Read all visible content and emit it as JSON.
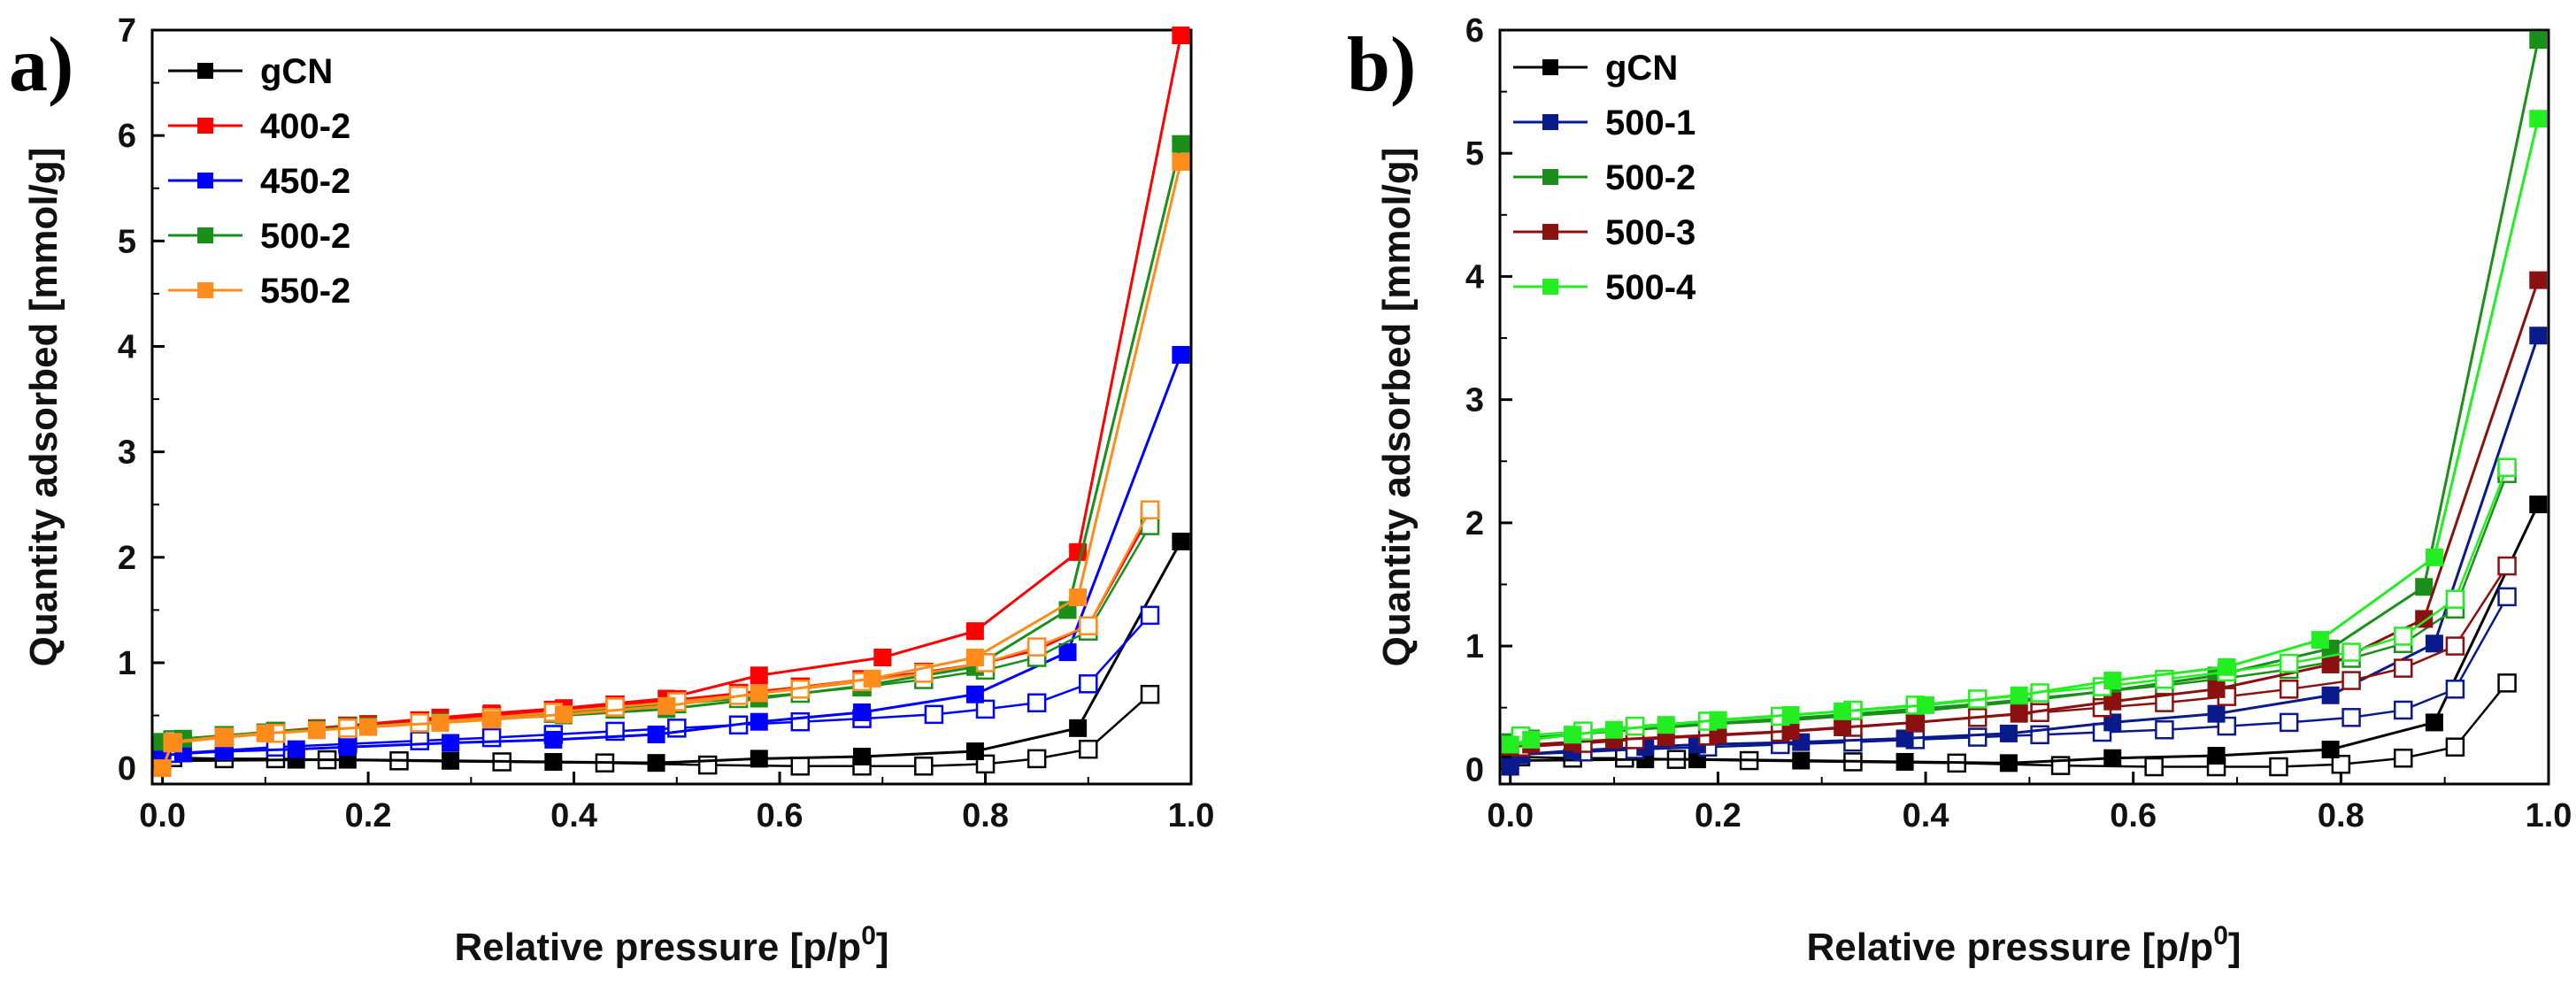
{
  "chart_data": [
    {
      "panel": "a)",
      "type": "line",
      "xlabel": "Relative pressure [p/p",
      "xlabel_sup": "0",
      "xlabel_end": "]",
      "ylabel": "Quantity adsorbed [mmol/g]",
      "xlim": [
        -0.01,
        1.0
      ],
      "ylim": [
        -0.15,
        7.0
      ],
      "xticks": [
        "0.0",
        "0.2",
        "0.4",
        "0.6",
        "0.8",
        "1.0"
      ],
      "yticks": [
        "0",
        "1",
        "2",
        "3",
        "4",
        "5",
        "6",
        "7"
      ],
      "legend_position": "top-left",
      "series": [
        {
          "name": "gCN",
          "color": "#000000",
          "adsorption": {
            "x": [
              0.0,
              0.13,
              0.18,
              0.28,
              0.38,
              0.48,
              0.58,
              0.68,
              0.79,
              0.89,
              0.99
            ],
            "y": [
              0.07,
              0.08,
              0.08,
              0.07,
              0.06,
              0.05,
              0.09,
              0.11,
              0.16,
              0.38,
              2.15
            ]
          },
          "desorption": {
            "x": [
              0.96,
              0.9,
              0.85,
              0.8,
              0.74,
              0.68,
              0.62,
              0.53,
              0.43,
              0.33,
              0.23,
              0.16,
              0.11,
              0.06,
              0.01
            ],
            "y": [
              0.7,
              0.18,
              0.09,
              0.04,
              0.02,
              0.02,
              0.02,
              0.03,
              0.05,
              0.06,
              0.07,
              0.08,
              0.09,
              0.09,
              0.1
            ]
          }
        },
        {
          "name": "400-2",
          "color": "#ff0000",
          "adsorption": {
            "x": [
              0.0,
              0.02,
              0.06,
              0.1,
              0.15,
              0.2,
              0.27,
              0.32,
              0.39,
              0.49,
              0.58,
              0.7,
              0.79,
              0.89,
              0.99
            ],
            "y": [
              0.22,
              0.26,
              0.3,
              0.34,
              0.38,
              0.42,
              0.48,
              0.52,
              0.57,
              0.66,
              0.88,
              1.05,
              1.3,
              2.05,
              6.95
            ]
          },
          "desorption": {
            "x": [
              0.96,
              0.9,
              0.85,
              0.8,
              0.74,
              0.68,
              0.62,
              0.56,
              0.5,
              0.44,
              0.38,
              0.32,
              0.25,
              0.18,
              0.11,
              0.06,
              0.01
            ],
            "y": [
              2.4,
              1.35,
              1.12,
              1.0,
              0.91,
              0.84,
              0.77,
              0.71,
              0.65,
              0.6,
              0.55,
              0.5,
              0.45,
              0.4,
              0.35,
              0.3,
              0.25
            ]
          }
        },
        {
          "name": "450-2",
          "color": "#0000ff",
          "adsorption": {
            "x": [
              0.0,
              0.02,
              0.06,
              0.13,
              0.18,
              0.28,
              0.38,
              0.48,
              0.58,
              0.68,
              0.79,
              0.88,
              0.99
            ],
            "y": [
              0.12,
              0.14,
              0.16,
              0.18,
              0.2,
              0.24,
              0.27,
              0.32,
              0.44,
              0.53,
              0.7,
              1.1,
              3.92
            ]
          },
          "desorption": {
            "x": [
              0.96,
              0.9,
              0.85,
              0.8,
              0.75,
              0.68,
              0.62,
              0.56,
              0.5,
              0.44,
              0.38,
              0.32,
              0.25,
              0.18,
              0.11,
              0.06,
              0.01
            ],
            "y": [
              1.45,
              0.8,
              0.62,
              0.56,
              0.51,
              0.47,
              0.44,
              0.41,
              0.38,
              0.35,
              0.32,
              0.29,
              0.26,
              0.23,
              0.2,
              0.17,
              0.14
            ]
          }
        },
        {
          "name": "500-2",
          "color": "#1a8f1a",
          "adsorption": {
            "x": [
              0.0,
              0.02,
              0.06,
              0.1,
              0.15,
              0.2,
              0.27,
              0.32,
              0.39,
              0.49,
              0.58,
              0.68,
              0.79,
              0.88,
              0.99
            ],
            "y": [
              0.25,
              0.28,
              0.31,
              0.34,
              0.37,
              0.4,
              0.44,
              0.47,
              0.5,
              0.56,
              0.66,
              0.78,
              0.96,
              1.5,
              5.92
            ]
          },
          "desorption": {
            "x": [
              0.96,
              0.9,
              0.85,
              0.8,
              0.74,
              0.68,
              0.62,
              0.56,
              0.5,
              0.44,
              0.38,
              0.32,
              0.25,
              0.18,
              0.11,
              0.06,
              0.01
            ],
            "y": [
              2.3,
              1.3,
              1.05,
              0.93,
              0.84,
              0.77,
              0.71,
              0.66,
              0.61,
              0.56,
              0.52,
              0.48,
              0.43,
              0.39,
              0.35,
              0.31,
              0.27
            ]
          }
        },
        {
          "name": "550-2",
          "color": "#ff8c1a",
          "adsorption": {
            "x": [
              0.0,
              0.01,
              0.06,
              0.1,
              0.15,
              0.2,
              0.27,
              0.32,
              0.39,
              0.49,
              0.58,
              0.69,
              0.79,
              0.89,
              0.99
            ],
            "y": [
              0.0,
              0.25,
              0.3,
              0.33,
              0.36,
              0.39,
              0.43,
              0.46,
              0.51,
              0.59,
              0.71,
              0.85,
              1.05,
              1.62,
              5.75
            ]
          },
          "desorption": {
            "x": [
              0.96,
              0.9,
              0.85,
              0.8,
              0.74,
              0.68,
              0.62,
              0.56,
              0.5,
              0.44,
              0.38,
              0.32,
              0.25,
              0.18,
              0.11,
              0.06,
              0.01
            ],
            "y": [
              2.45,
              1.35,
              1.15,
              1.0,
              0.9,
              0.82,
              0.75,
              0.69,
              0.63,
              0.58,
              0.53,
              0.48,
              0.43,
              0.38,
              0.33,
              0.29,
              0.24
            ]
          }
        }
      ]
    },
    {
      "panel": "b)",
      "type": "line",
      "xlabel": "Relative pressure [p/p",
      "xlabel_sup": "0",
      "xlabel_end": "]",
      "ylabel": "Quantity adsorbed [mmol/g]",
      "xlim": [
        -0.01,
        1.0
      ],
      "ylim": [
        -0.12,
        6.0
      ],
      "xticks": [
        "0.0",
        "0.2",
        "0.4",
        "0.6",
        "0.8",
        "1.0"
      ],
      "yticks": [
        "0",
        "1",
        "2",
        "3",
        "4",
        "5",
        "6"
      ],
      "legend_position": "top-left",
      "series": [
        {
          "name": "gCN",
          "color": "#000000",
          "adsorption": {
            "x": [
              0.0,
              0.13,
              0.18,
              0.28,
              0.38,
              0.48,
              0.58,
              0.68,
              0.79,
              0.89,
              0.99
            ],
            "y": [
              0.07,
              0.08,
              0.08,
              0.07,
              0.06,
              0.05,
              0.09,
              0.11,
              0.16,
              0.38,
              2.15
            ]
          },
          "desorption": {
            "x": [
              0.96,
              0.91,
              0.86,
              0.8,
              0.74,
              0.68,
              0.62,
              0.53,
              0.43,
              0.33,
              0.23,
              0.16,
              0.11,
              0.06,
              0.01
            ],
            "y": [
              0.7,
              0.18,
              0.09,
              0.04,
              0.02,
              0.02,
              0.02,
              0.03,
              0.05,
              0.06,
              0.07,
              0.08,
              0.09,
              0.09,
              0.1
            ]
          }
        },
        {
          "name": "500-1",
          "color": "#0a1a8c",
          "adsorption": {
            "x": [
              0.0,
              0.01,
              0.06,
              0.13,
              0.18,
              0.28,
              0.38,
              0.48,
              0.58,
              0.68,
              0.79,
              0.89,
              0.99
            ],
            "y": [
              0.02,
              0.12,
              0.15,
              0.18,
              0.2,
              0.22,
              0.25,
              0.29,
              0.38,
              0.45,
              0.6,
              1.02,
              3.52
            ]
          },
          "desorption": {
            "x": [
              0.96,
              0.91,
              0.86,
              0.81,
              0.75,
              0.69,
              0.63,
              0.57,
              0.51,
              0.45,
              0.39,
              0.33,
              0.26,
              0.19,
              0.12,
              0.07,
              0.01
            ],
            "y": [
              1.4,
              0.65,
              0.48,
              0.42,
              0.38,
              0.35,
              0.32,
              0.3,
              0.28,
              0.26,
              0.24,
              0.22,
              0.2,
              0.18,
              0.16,
              0.14,
              0.12
            ]
          }
        },
        {
          "name": "500-2",
          "color": "#1a8f1a",
          "adsorption": {
            "x": [
              0.0,
              0.02,
              0.06,
              0.1,
              0.15,
              0.2,
              0.27,
              0.32,
              0.39,
              0.49,
              0.58,
              0.68,
              0.79,
              0.88,
              0.99
            ],
            "y": [
              0.22,
              0.25,
              0.28,
              0.31,
              0.34,
              0.37,
              0.4,
              0.43,
              0.47,
              0.55,
              0.64,
              0.76,
              0.98,
              1.48,
              5.92
            ]
          },
          "desorption": {
            "x": [
              0.96,
              0.91,
              0.86,
              0.81,
              0.75,
              0.69,
              0.63,
              0.57,
              0.51,
              0.45,
              0.39,
              0.33,
              0.26,
              0.19,
              0.12,
              0.07,
              0.01
            ],
            "y": [
              2.4,
              1.3,
              1.02,
              0.9,
              0.81,
              0.74,
              0.68,
              0.63,
              0.58,
              0.53,
              0.49,
              0.45,
              0.41,
              0.37,
              0.33,
              0.29,
              0.25
            ]
          }
        },
        {
          "name": "500-3",
          "color": "#8b1010",
          "adsorption": {
            "x": [
              0.0,
              0.02,
              0.06,
              0.1,
              0.15,
              0.2,
              0.27,
              0.32,
              0.39,
              0.49,
              0.58,
              0.68,
              0.79,
              0.88,
              0.99
            ],
            "y": [
              0.18,
              0.2,
              0.22,
              0.24,
              0.26,
              0.28,
              0.31,
              0.34,
              0.38,
              0.45,
              0.55,
              0.65,
              0.85,
              1.22,
              3.97
            ]
          },
          "desorption": {
            "x": [
              0.96,
              0.91,
              0.86,
              0.81,
              0.75,
              0.69,
              0.63,
              0.57,
              0.51,
              0.45,
              0.39,
              0.33,
              0.26,
              0.19,
              0.12,
              0.07,
              0.01
            ],
            "y": [
              1.65,
              1.0,
              0.82,
              0.72,
              0.65,
              0.59,
              0.54,
              0.5,
              0.46,
              0.42,
              0.38,
              0.34,
              0.3,
              0.27,
              0.24,
              0.21,
              0.18
            ]
          }
        },
        {
          "name": "500-4",
          "color": "#22ee22",
          "adsorption": {
            "x": [
              0.0,
              0.02,
              0.06,
              0.1,
              0.15,
              0.2,
              0.27,
              0.32,
              0.4,
              0.49,
              0.58,
              0.69,
              0.78,
              0.89,
              0.99
            ],
            "y": [
              0.2,
              0.24,
              0.28,
              0.32,
              0.36,
              0.4,
              0.44,
              0.47,
              0.52,
              0.6,
              0.72,
              0.83,
              1.05,
              1.72,
              5.28
            ]
          },
          "desorption": {
            "x": [
              0.96,
              0.91,
              0.86,
              0.81,
              0.75,
              0.69,
              0.63,
              0.57,
              0.51,
              0.45,
              0.39,
              0.33,
              0.26,
              0.19,
              0.12,
              0.07,
              0.01
            ],
            "y": [
              2.45,
              1.38,
              1.08,
              0.95,
              0.86,
              0.79,
              0.73,
              0.67,
              0.62,
              0.57,
              0.52,
              0.48,
              0.43,
              0.39,
              0.35,
              0.31,
              0.27
            ]
          }
        }
      ]
    }
  ]
}
